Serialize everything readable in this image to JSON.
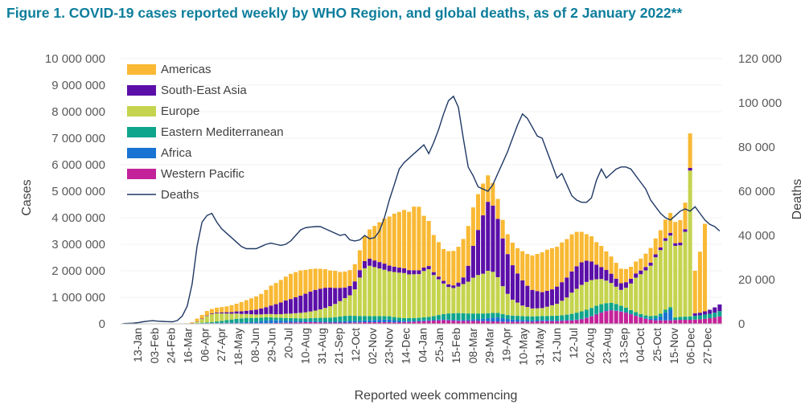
{
  "title": "Figure 1. COVID-19 cases reported weekly by WHO Region, and global deaths, as of 2 January 2022**",
  "chart_data": {
    "type": "bar",
    "stacked": true,
    "secondary_series": "Deaths",
    "xlabel": "Reported week commencing",
    "ylabel_left": "Cases",
    "ylabel_right": "Deaths",
    "ylim_left": [
      0,
      10000000
    ],
    "ylim_right": [
      0,
      120000
    ],
    "yticks_left": [
      "0",
      "1 000 000",
      "2 000 000",
      "3 000 000",
      "4 000 000",
      "5 000 000",
      "6 000 000",
      "7 000 000",
      "8 000 000",
      "9 000 000",
      "10 000 000"
    ],
    "yticks_right": [
      "0",
      "20 000",
      "40 000",
      "60 000",
      "80 000",
      "100 000",
      "120 000"
    ],
    "xtick_labels": [
      "13-Jan",
      "03-Feb",
      "24-Feb",
      "16-Mar",
      "06-Apr",
      "27-Apr",
      "18-May",
      "08-Jun",
      "29-Jun",
      "20-Jul",
      "10-Aug",
      "31-Aug",
      "21-Sep",
      "12-Oct",
      "02-Nov",
      "23-Nov",
      "14-Dec",
      "04-Jan",
      "25-Jan",
      "15-Feb",
      "08-Mar",
      "29-Mar",
      "19-Apr",
      "10-May",
      "31-May",
      "21-Jun",
      "12-Jul",
      "02-Aug",
      "23-Aug",
      "13-Sep",
      "04-Oct",
      "25-Oct",
      "15-Nov",
      "06-Dec",
      "27-Dec"
    ],
    "legend": [
      {
        "name": "Americas",
        "color": "#F9B934",
        "kind": "bar"
      },
      {
        "name": "South-East Asia",
        "color": "#5B0FA8",
        "kind": "bar"
      },
      {
        "name": "Europe",
        "color": "#C5D44E",
        "kind": "bar"
      },
      {
        "name": "Eastern Mediterranean",
        "color": "#0EA58C",
        "kind": "bar"
      },
      {
        "name": "Africa",
        "color": "#1873D2",
        "kind": "bar"
      },
      {
        "name": "Western Pacific",
        "color": "#C4229A",
        "kind": "bar"
      },
      {
        "name": "Deaths",
        "color": "#1F3864",
        "kind": "line"
      }
    ],
    "series": [
      {
        "name": "Western Pacific",
        "color": "#C4229A",
        "values": [
          0,
          0,
          0,
          0,
          0,
          0,
          0,
          0,
          0,
          0,
          0,
          2000,
          6000,
          8000,
          10000,
          14000,
          20000,
          22000,
          22000,
          22000,
          22000,
          22000,
          22000,
          22000,
          22000,
          22000,
          22000,
          22000,
          22000,
          22000,
          25000,
          30000,
          35000,
          40000,
          45000,
          50000,
          55000,
          60000,
          65000,
          60000,
          55000,
          50000,
          45000,
          45000,
          45000,
          45000,
          45000,
          50000,
          55000,
          60000,
          60000,
          60000,
          60000,
          60000,
          60000,
          55000,
          60000,
          65000,
          70000,
          80000,
          90000,
          100000,
          110000,
          120000,
          130000,
          140000,
          130000,
          120000,
          110000,
          110000,
          110000,
          110000,
          110000,
          100000,
          100000,
          90000,
          90000,
          80000,
          80000,
          80000,
          80000,
          80000,
          80000,
          80000,
          90000,
          100000,
          100000,
          100000,
          100000,
          110000,
          120000,
          120000,
          140000,
          170000,
          220000,
          280000,
          350000,
          420000,
          480000,
          510000,
          490000,
          460000,
          420000,
          360000,
          300000,
          240000,
          190000,
          150000,
          130000,
          130000,
          130000,
          130000,
          140000,
          150000,
          150000,
          150000,
          160000,
          170000,
          190000,
          210000,
          240000,
          280000
        ]
      },
      {
        "name": "Africa",
        "color": "#1873D2",
        "values": [
          0,
          0,
          0,
          0,
          0,
          0,
          0,
          0,
          0,
          0,
          0,
          0,
          0,
          0,
          0,
          0,
          0,
          2000,
          4000,
          6000,
          10000,
          15000,
          20000,
          25000,
          30000,
          40000,
          50000,
          60000,
          80000,
          100000,
          110000,
          100000,
          90000,
          80000,
          70000,
          60000,
          50000,
          45000,
          40000,
          40000,
          40000,
          40000,
          40000,
          45000,
          50000,
          55000,
          60000,
          60000,
          60000,
          65000,
          70000,
          80000,
          90000,
          100000,
          95000,
          80000,
          60000,
          50000,
          45000,
          40000,
          35000,
          32000,
          30000,
          30000,
          30000,
          30000,
          30000,
          30000,
          35000,
          40000,
          50000,
          60000,
          70000,
          90000,
          110000,
          140000,
          150000,
          130000,
          100000,
          80000,
          70000,
          60000,
          55000,
          50000,
          45000,
          45000,
          45000,
          40000,
          35000,
          30000,
          25000,
          25000,
          20000,
          20000,
          20000,
          20000,
          20000,
          20000,
          20000,
          20000,
          20000,
          20000,
          20000,
          20000,
          20000,
          20000,
          25000,
          40000,
          80000,
          150000,
          300000,
          400000
        ]
      },
      {
        "name": "Eastern Mediterranean",
        "color": "#0EA58C",
        "values": [
          0,
          0,
          0,
          0,
          0,
          0,
          0,
          0,
          0,
          0,
          0,
          0,
          0,
          1000,
          5000,
          10000,
          20000,
          30000,
          40000,
          60000,
          80000,
          100000,
          120000,
          140000,
          150000,
          160000,
          150000,
          140000,
          130000,
          120000,
          110000,
          100000,
          100000,
          100000,
          100000,
          100000,
          100000,
          100000,
          110000,
          120000,
          130000,
          140000,
          150000,
          160000,
          180000,
          200000,
          200000,
          190000,
          180000,
          170000,
          160000,
          150000,
          140000,
          130000,
          130000,
          120000,
          110000,
          100000,
          100000,
          100000,
          100000,
          110000,
          120000,
          140000,
          170000,
          200000,
          230000,
          250000,
          260000,
          250000,
          230000,
          220000,
          210000,
          200000,
          190000,
          180000,
          170000,
          160000,
          150000,
          150000,
          150000,
          150000,
          150000,
          150000,
          150000,
          150000,
          150000,
          160000,
          170000,
          180000,
          200000,
          230000,
          260000,
          280000,
          290000,
          300000,
          310000,
          300000,
          280000,
          260000,
          240000,
          200000,
          170000,
          140000,
          120000,
          110000,
          100000,
          100000,
          100000,
          100000,
          100000,
          100000,
          100000,
          110000,
          120000,
          130000,
          140000,
          150000,
          160000,
          170000,
          180000,
          200000
        ]
      },
      {
        "name": "Europe",
        "color": "#C5D44E",
        "values": [
          0,
          0,
          0,
          0,
          0,
          0,
          0,
          0,
          0,
          0,
          0,
          0,
          0,
          0,
          10000,
          60000,
          140000,
          240000,
          300000,
          310000,
          280000,
          250000,
          220000,
          200000,
          170000,
          150000,
          140000,
          130000,
          125000,
          125000,
          125000,
          130000,
          140000,
          160000,
          170000,
          190000,
          210000,
          230000,
          250000,
          280000,
          320000,
          370000,
          430000,
          500000,
          580000,
          670000,
          770000,
          1000000,
          1450000,
          1800000,
          1900000,
          1850000,
          1800000,
          1750000,
          1700000,
          1700000,
          1700000,
          1700000,
          1650000,
          1650000,
          1650000,
          1750000,
          1800000,
          1550000,
          1350000,
          1150000,
          1000000,
          950000,
          1000000,
          1100000,
          1200000,
          1350000,
          1450000,
          1500000,
          1600000,
          1550000,
          1350000,
          1050000,
          800000,
          600000,
          500000,
          400000,
          350000,
          300000,
          300000,
          300000,
          350000,
          400000,
          450000,
          550000,
          650000,
          800000,
          900000,
          1000000,
          1050000,
          1050000,
          1000000,
          950000,
          850000,
          750000,
          650000,
          600000,
          750000,
          1000000,
          1300000,
          1500000,
          1700000,
          1900000,
          2200000,
          2400000,
          2600000,
          2700000,
          2700000,
          2700000,
          3200000,
          5500000
        ]
      },
      {
        "name": "South-East Asia",
        "color": "#5B0FA8",
        "values": [
          0,
          0,
          0,
          0,
          0,
          0,
          0,
          0,
          0,
          0,
          0,
          0,
          0,
          0,
          5000,
          10000,
          15000,
          20000,
          25000,
          30000,
          40000,
          50000,
          60000,
          80000,
          100000,
          120000,
          150000,
          180000,
          220000,
          260000,
          320000,
          380000,
          440000,
          500000,
          550000,
          600000,
          650000,
          700000,
          750000,
          780000,
          780000,
          760000,
          700000,
          600000,
          500000,
          400000,
          350000,
          300000,
          280000,
          270000,
          270000,
          250000,
          240000,
          230000,
          210000,
          200000,
          190000,
          180000,
          160000,
          150000,
          140000,
          130000,
          120000,
          110000,
          100000,
          100000,
          100000,
          100000,
          150000,
          250000,
          600000,
          1200000,
          1700000,
          2200000,
          2600000,
          2500000,
          2200000,
          1800000,
          1500000,
          1300000,
          1100000,
          950000,
          800000,
          700000,
          650000,
          600000,
          600000,
          600000,
          650000,
          700000,
          750000,
          800000,
          850000,
          850000,
          800000,
          700000,
          550000,
          450000,
          400000,
          350000,
          300000,
          250000,
          210000,
          180000,
          160000,
          140000,
          130000,
          120000,
          110000,
          100000,
          100000,
          100000,
          100000,
          100000,
          100000,
          100000,
          100000,
          100000,
          120000,
          150000,
          200000,
          250000
        ]
      },
      {
        "name": "Americas",
        "color": "#F9B934",
        "values": [
          0,
          0,
          0,
          0,
          0,
          0,
          0,
          0,
          0,
          0,
          0,
          2000,
          5000,
          10000,
          30000,
          100000,
          140000,
          170000,
          170000,
          180000,
          200000,
          220000,
          260000,
          290000,
          350000,
          400000,
          450000,
          500000,
          550000,
          650000,
          750000,
          800000,
          850000,
          900000,
          950000,
          950000,
          950000,
          900000,
          850000,
          800000,
          750000,
          700000,
          650000,
          650000,
          600000,
          600000,
          600000,
          650000,
          750000,
          950000,
          1100000,
          1300000,
          1500000,
          1700000,
          1850000,
          2000000,
          2100000,
          2200000,
          2200000,
          2400000,
          2400000,
          1950000,
          1700000,
          1400000,
          1300000,
          1200000,
          1250000,
          1300000,
          1350000,
          1450000,
          1500000,
          1450000,
          1350000,
          1200000,
          1000000,
          850000,
          750000,
          700000,
          750000,
          850000,
          950000,
          1100000,
          1200000,
          1300000,
          1400000,
          1500000,
          1550000,
          1550000,
          1500000,
          1500000,
          1450000,
          1400000,
          1300000,
          1150000,
          1000000,
          950000,
          850000,
          800000,
          700000,
          650000,
          600000,
          550000,
          500000,
          450000,
          450000,
          450000,
          500000,
          550000,
          600000,
          650000,
          700000,
          750000,
          800000,
          850000,
          1000000,
          1300000,
          1600000,
          2300000,
          3300000
        ]
      }
    ],
    "deaths": [
      100,
      200,
      300,
      500,
      900,
      1200,
      1400,
      1200,
      1100,
      1000,
      900,
      1500,
      3500,
      8000,
      18000,
      35000,
      46000,
      49000,
      50000,
      46000,
      43000,
      41000,
      39000,
      37000,
      35000,
      34000,
      34000,
      34000,
      35000,
      36000,
      36500,
      36000,
      35500,
      36000,
      37500,
      40000,
      42500,
      43500,
      43800,
      44000,
      44000,
      43000,
      42000,
      41000,
      40000,
      40500,
      38000,
      37500,
      38000,
      40000,
      38500,
      39000,
      42000,
      48000,
      56000,
      63000,
      70000,
      73000,
      75000,
      77000,
      79000,
      81000,
      77000,
      82000,
      88000,
      95000,
      101000,
      103000,
      98000,
      84000,
      71000,
      67000,
      62000,
      61000,
      60000,
      63000,
      68000,
      73000,
      78000,
      84000,
      90000,
      95000,
      93000,
      89000,
      85000,
      84000,
      78000,
      72000,
      66000,
      68000,
      63000,
      58000,
      56000,
      55000,
      55000,
      57000,
      65000,
      70000,
      66000,
      68000,
      70000,
      71000,
      71000,
      70000,
      67000,
      64000,
      61000,
      56000,
      53000,
      50000,
      48000,
      47000,
      49000,
      51000,
      52000,
      51000,
      53000,
      50000,
      47000,
      45000,
      44000,
      42000
    ]
  }
}
